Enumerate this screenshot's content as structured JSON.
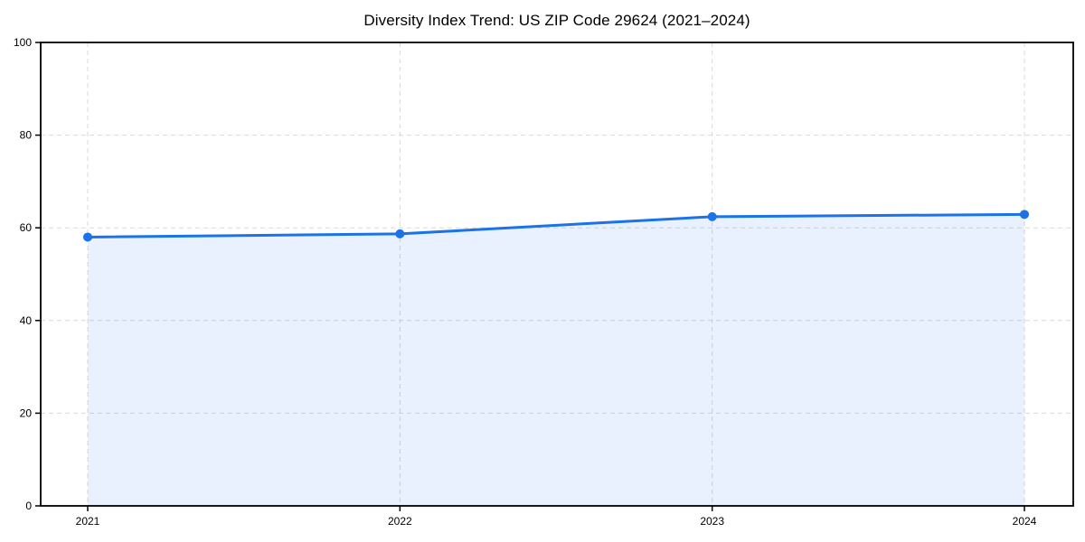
{
  "title": "Diversity Index Trend: US ZIP Code 29624 (2021–2024)",
  "chart_data": {
    "type": "area",
    "title": "Diversity Index Trend: US ZIP Code 29624 (2021–2024)",
    "categories": [
      "2021",
      "2022",
      "2023",
      "2024"
    ],
    "series": [
      {
        "name": "Diversity Index",
        "values": [
          58.0,
          58.7,
          62.4,
          62.9
        ]
      }
    ],
    "xlabel": "",
    "ylabel": "",
    "ylim": [
      0,
      100
    ],
    "yticks": [
      0,
      20,
      40,
      60,
      80,
      100
    ],
    "grid": true,
    "grid_style": "dashed",
    "legend": false,
    "colors": {
      "line": "#1a73e8",
      "marker": "#1a73e8",
      "fill": "rgba(26,115,232,0.10)",
      "gridline": "#d9d9d9",
      "spine": "#000000",
      "tick_text": "#000000",
      "background": "#ffffff"
    }
  }
}
